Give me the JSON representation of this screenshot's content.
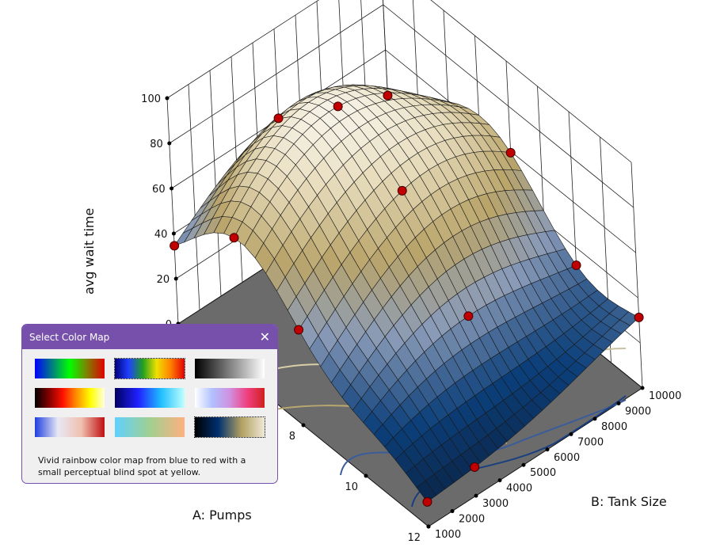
{
  "chart_data": {
    "type": "surface3d",
    "title": "",
    "xlabel": "A: Pumps",
    "ylabel": "B: Tank Size",
    "zlabel": "avg wait time",
    "xlim": [
      4,
      12
    ],
    "ylim": [
      1000,
      10000
    ],
    "zlim": [
      0,
      100
    ],
    "x_ticks": [
      "8",
      "10",
      "12"
    ],
    "y_ticks": [
      "1000",
      "2000",
      "3000",
      "4000",
      "5000",
      "6000",
      "7000",
      "8000",
      "9000",
      "10000"
    ],
    "z_ticks": [
      "0",
      "20",
      "40",
      "60",
      "80",
      "100"
    ],
    "design_points": [
      {
        "a": 4,
        "b": 1000,
        "z": 22
      },
      {
        "a": 4,
        "b": 5500,
        "z": 60
      },
      {
        "a": 4,
        "b": 10000,
        "z": 95
      },
      {
        "a": 6,
        "b": 1000,
        "z": 40
      },
      {
        "a": 6,
        "b": 5500,
        "z": 80
      },
      {
        "a": 8,
        "b": 10000,
        "z": 92
      },
      {
        "a": 8,
        "b": 5500,
        "z": 62
      },
      {
        "a": 8,
        "b": 1000,
        "z": 20
      },
      {
        "a": 10,
        "b": 10000,
        "z": 55
      },
      {
        "a": 10,
        "b": 5500,
        "z": 30
      },
      {
        "a": 12,
        "b": 1000,
        "z": 5
      },
      {
        "a": 12,
        "b": 3000,
        "z": 6
      },
      {
        "a": 12,
        "b": 10000,
        "z": 40
      }
    ],
    "colormap": [
      "#0a1a33",
      "#0b3f7a",
      "#8a9bb8",
      "#b9a46a",
      "#e7dcbc",
      "#ffffff"
    ],
    "point_color": "#c00000"
  },
  "dialog": {
    "title": "Select Color Map",
    "close_label": "✕",
    "description": "Vivid rainbow color map from blue to red with a small perceptual blind spot at yellow.",
    "colormaps": [
      {
        "name": "rainbow-green",
        "stops": [
          "#0000ff",
          "#008080",
          "#00ff00",
          "#808000",
          "#e00000"
        ],
        "selected": false
      },
      {
        "name": "vivid-rainbow",
        "stops": [
          "#00007a",
          "#2040ff",
          "#20a020",
          "#f0e000",
          "#ff8000",
          "#e00000"
        ],
        "selected": true
      },
      {
        "name": "grayscale",
        "stops": [
          "#000000",
          "#808080",
          "#ffffff"
        ],
        "selected": false
      },
      {
        "name": "hot",
        "stops": [
          "#000000",
          "#800000",
          "#ff1000",
          "#ff9000",
          "#ffff00",
          "#ffffe0"
        ],
        "selected": false
      },
      {
        "name": "ocean",
        "stops": [
          "#000060",
          "#2020ff",
          "#20c0ff",
          "#c0ffff"
        ],
        "selected": false
      },
      {
        "name": "white-pink-red",
        "stops": [
          "#ffffff",
          "#b0c0ff",
          "#d090e0",
          "#f04080",
          "#d02020"
        ],
        "selected": false
      },
      {
        "name": "blue-white-red",
        "stops": [
          "#2040e0",
          "#e8e8f4",
          "#f0c0b0",
          "#c01010"
        ],
        "selected": false
      },
      {
        "name": "cyan-orange",
        "stops": [
          "#60d0ff",
          "#a0d090",
          "#ffb080"
        ],
        "selected": false
      },
      {
        "name": "navy-gold",
        "stops": [
          "#000000",
          "#003070",
          "#b0a060",
          "#f0e8d8"
        ],
        "selected": true
      }
    ]
  }
}
